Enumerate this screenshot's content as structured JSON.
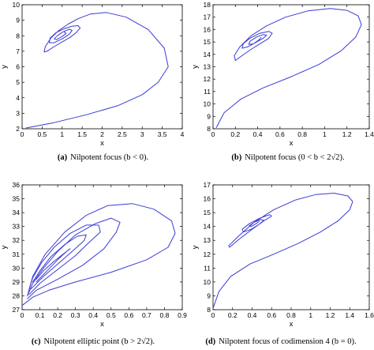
{
  "chart_data": [
    {
      "type": "line",
      "panel_label": "(a)",
      "caption": "Nilpotent focus (b < 0).",
      "xlabel": "x",
      "ylabel": "y",
      "xlim": [
        0,
        4
      ],
      "ylim": [
        2,
        10
      ],
      "xticks": [
        0,
        0.5,
        1,
        1.5,
        2,
        2.5,
        3,
        3.5,
        4
      ],
      "xtick_labels": [
        "0",
        "0.5",
        "1",
        "1.5",
        "2",
        "2.5",
        "3",
        "3.5",
        "4"
      ],
      "yticks": [
        2,
        3,
        4,
        5,
        6,
        7,
        8,
        9,
        10
      ],
      "ytick_labels": [
        "2",
        "3",
        "4",
        "5",
        "6",
        "7",
        "8",
        "9",
        "10"
      ],
      "line_color": "#3b3bd6",
      "series": [
        {
          "x": [
            0.1,
            0.8,
            1.6,
            2.4,
            3.0,
            3.4,
            3.65,
            3.55,
            3.15,
            2.6,
            2.1,
            1.7,
            1.4,
            1.15,
            0.92,
            0.72,
            0.58,
            0.55,
            0.62,
            0.8,
            1.0,
            1.2,
            1.35,
            1.45,
            1.4,
            1.25,
            1.05,
            0.85,
            0.7,
            0.68,
            0.8,
            1.0,
            1.18,
            1.25,
            1.18,
            1.02,
            0.88,
            0.8,
            0.86,
            1.0,
            1.1,
            1.05
          ],
          "y": [
            2.05,
            2.4,
            2.9,
            3.5,
            4.2,
            5.0,
            6.0,
            7.2,
            8.4,
            9.2,
            9.5,
            9.4,
            9.1,
            8.75,
            8.35,
            7.85,
            7.3,
            6.95,
            7.0,
            7.3,
            7.6,
            7.9,
            8.2,
            8.5,
            8.65,
            8.62,
            8.45,
            8.2,
            7.85,
            7.55,
            7.55,
            7.8,
            8.1,
            8.35,
            8.42,
            8.25,
            8.0,
            7.8,
            7.75,
            7.95,
            8.15,
            8.25
          ]
        }
      ]
    },
    {
      "type": "line",
      "panel_label": "(b)",
      "caption": "Nilpotent focus (0 < b < 2√2).",
      "xlabel": "x",
      "ylabel": "y",
      "xlim": [
        0,
        1.4
      ],
      "ylim": [
        8,
        18
      ],
      "xticks": [
        0,
        0.2,
        0.4,
        0.6,
        0.8,
        1,
        1.2,
        1.4
      ],
      "xtick_labels": [
        "0",
        "0.2",
        "0.4",
        "0.6",
        "0.8",
        "1",
        "1.2",
        "1.4"
      ],
      "yticks": [
        8,
        9,
        10,
        11,
        12,
        13,
        14,
        15,
        16,
        17,
        18
      ],
      "ytick_labels": [
        "8",
        "9",
        "10",
        "11",
        "12",
        "13",
        "14",
        "15",
        "16",
        "17",
        "18"
      ],
      "line_color": "#3b3bd6",
      "series": [
        {
          "x": [
            0.03,
            0.1,
            0.25,
            0.45,
            0.7,
            0.95,
            1.15,
            1.28,
            1.33,
            1.3,
            1.2,
            1.05,
            0.85,
            0.65,
            0.48,
            0.34,
            0.24,
            0.19,
            0.2,
            0.26,
            0.34,
            0.43,
            0.5,
            0.53,
            0.5,
            0.42,
            0.33,
            0.27,
            0.26,
            0.31,
            0.38,
            0.45,
            0.48,
            0.45,
            0.39,
            0.33,
            0.32,
            0.36,
            0.41,
            0.43
          ],
          "y": [
            8.1,
            9.3,
            10.4,
            11.3,
            12.2,
            13.2,
            14.3,
            15.4,
            16.4,
            17.1,
            17.55,
            17.7,
            17.5,
            17.0,
            16.3,
            15.5,
            14.6,
            13.9,
            13.5,
            13.9,
            14.4,
            14.9,
            15.3,
            15.7,
            15.85,
            15.7,
            15.3,
            14.85,
            14.5,
            14.6,
            14.95,
            15.3,
            15.55,
            15.6,
            15.4,
            15.05,
            14.8,
            14.85,
            15.15,
            15.35
          ]
        }
      ]
    },
    {
      "type": "line",
      "panel_label": "(c)",
      "caption": "Nilpotent elliptic point (b > 2√2).",
      "xlabel": "x",
      "ylabel": "y",
      "xlim": [
        0,
        0.9
      ],
      "ylim": [
        27,
        36
      ],
      "xticks": [
        0,
        0.1,
        0.2,
        0.3,
        0.4,
        0.5,
        0.6,
        0.7,
        0.8,
        0.9
      ],
      "xtick_labels": [
        "0",
        "0.1",
        "0.2",
        "0.3",
        "0.4",
        "0.5",
        "0.6",
        "0.7",
        "0.8",
        "0.9"
      ],
      "yticks": [
        27,
        28,
        29,
        30,
        31,
        32,
        33,
        34,
        35,
        36
      ],
      "ytick_labels": [
        "27",
        "28",
        "29",
        "30",
        "31",
        "32",
        "33",
        "34",
        "35",
        "36"
      ],
      "line_color": "#3b3bd6",
      "series": [
        {
          "x": [
            0.0,
            0.06,
            0.15,
            0.3,
            0.5,
            0.7,
            0.82,
            0.86,
            0.84,
            0.74,
            0.62,
            0.48,
            0.36,
            0.24,
            0.13,
            0.06,
            0.03
          ],
          "y": [
            27.3,
            27.9,
            28.4,
            29.0,
            29.7,
            30.6,
            31.5,
            32.5,
            33.4,
            34.25,
            34.65,
            34.5,
            33.8,
            32.6,
            31.0,
            29.4,
            28.0
          ]
        },
        {
          "x": [
            0.03,
            0.08,
            0.2,
            0.34,
            0.46,
            0.53,
            0.55,
            0.5,
            0.41,
            0.3,
            0.2,
            0.12,
            0.06,
            0.03
          ],
          "y": [
            27.8,
            28.4,
            29.2,
            30.2,
            31.4,
            32.6,
            33.3,
            33.6,
            33.2,
            32.4,
            31.2,
            30.0,
            28.9,
            28.0
          ]
        },
        {
          "x": [
            0.04,
            0.1,
            0.2,
            0.3,
            0.38,
            0.44,
            0.43,
            0.36,
            0.27,
            0.18,
            0.11,
            0.06,
            0.04
          ],
          "y": [
            28.1,
            28.9,
            29.9,
            30.9,
            31.9,
            32.6,
            33.1,
            33.1,
            32.5,
            31.5,
            30.4,
            29.3,
            28.5
          ]
        },
        {
          "x": [
            0.05,
            0.12,
            0.21,
            0.29,
            0.35,
            0.36,
            0.31,
            0.24,
            0.16,
            0.1,
            0.06
          ],
          "y": [
            28.5,
            29.4,
            30.4,
            31.3,
            32.0,
            32.4,
            32.3,
            31.7,
            30.8,
            29.8,
            29.0
          ]
        },
        {
          "x": [
            0.08,
            0.14,
            0.2,
            0.25,
            0.27,
            0.24,
            0.18,
            0.12,
            0.08
          ],
          "y": [
            29.0,
            29.8,
            30.6,
            31.2,
            31.4,
            31.1,
            30.5,
            29.8,
            29.2
          ]
        }
      ]
    },
    {
      "type": "line",
      "panel_label": "(d)",
      "caption": "Nilpotent focus of codimension 4 (b = 0).",
      "xlabel": "x",
      "ylabel": "y",
      "xlim": [
        0,
        1.6
      ],
      "ylim": [
        8,
        17
      ],
      "xticks": [
        0,
        0.2,
        0.4,
        0.6,
        0.8,
        1,
        1.2,
        1.4,
        1.6
      ],
      "xtick_labels": [
        "0",
        "0.2",
        "0.4",
        "0.6",
        "0.8",
        "1",
        "1.2",
        "1.4",
        "1.6"
      ],
      "yticks": [
        8,
        9,
        10,
        11,
        12,
        13,
        14,
        15,
        16,
        17
      ],
      "ytick_labels": [
        "8",
        "9",
        "10",
        "11",
        "12",
        "13",
        "14",
        "15",
        "16",
        "17"
      ],
      "line_color": "#3b3bd6",
      "series": [
        {
          "x": [
            0.0,
            0.06,
            0.18,
            0.38,
            0.62,
            0.88,
            1.1,
            1.28,
            1.4,
            1.43,
            1.38,
            1.24,
            1.05,
            0.84,
            0.62,
            0.42,
            0.26,
            0.16,
            0.17,
            0.27,
            0.4,
            0.52,
            0.6,
            0.58,
            0.48,
            0.37,
            0.3,
            0.31,
            0.39,
            0.47,
            0.52,
            0.49,
            0.42,
            0.37,
            0.39,
            0.44,
            0.47
          ],
          "y": [
            8.1,
            9.3,
            10.4,
            11.3,
            12.0,
            12.8,
            13.6,
            14.4,
            15.2,
            15.8,
            16.2,
            16.4,
            16.3,
            15.9,
            15.2,
            14.3,
            13.3,
            12.6,
            12.5,
            13.1,
            13.8,
            14.4,
            14.75,
            14.85,
            14.6,
            14.2,
            13.8,
            13.6,
            13.8,
            14.15,
            14.45,
            14.5,
            14.3,
            14.05,
            14.0,
            14.2,
            14.35
          ]
        }
      ]
    }
  ]
}
